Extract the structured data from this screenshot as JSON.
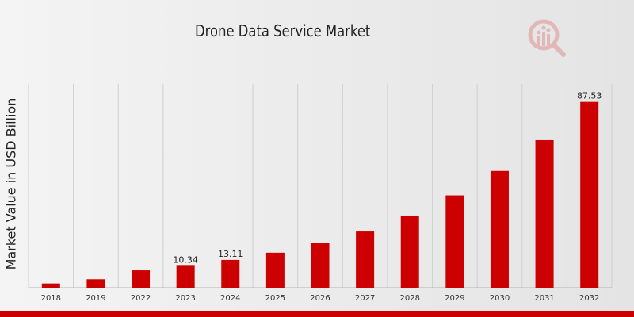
{
  "chart_data": {
    "type": "bar",
    "title": "Drone Data Service Market",
    "ylabel": "Market Value in USD Billion",
    "xlabel": "",
    "categories": [
      "2018",
      "2019",
      "2022",
      "2023",
      "2024",
      "2025",
      "2026",
      "2027",
      "2028",
      "2029",
      "2030",
      "2031",
      "2032"
    ],
    "values": [
      2.0,
      4.0,
      8.2,
      10.34,
      13.11,
      16.5,
      21.0,
      26.5,
      34.0,
      43.5,
      55.0,
      69.5,
      87.53
    ],
    "data_labels": [
      {
        "category": "2023",
        "text": "10.34"
      },
      {
        "category": "2024",
        "text": "13.11"
      },
      {
        "category": "2032",
        "text": "87.53"
      }
    ],
    "ylim": [
      0,
      96
    ],
    "grid": "vertical",
    "legend": "none",
    "colors": {
      "bar": "#cc0000",
      "gridline": "#cfcfcf",
      "axis": "#b5b5b5",
      "accent_bar": "#cc0000"
    }
  },
  "logo": {
    "icon": "magnifier-bar-chart-icon"
  }
}
